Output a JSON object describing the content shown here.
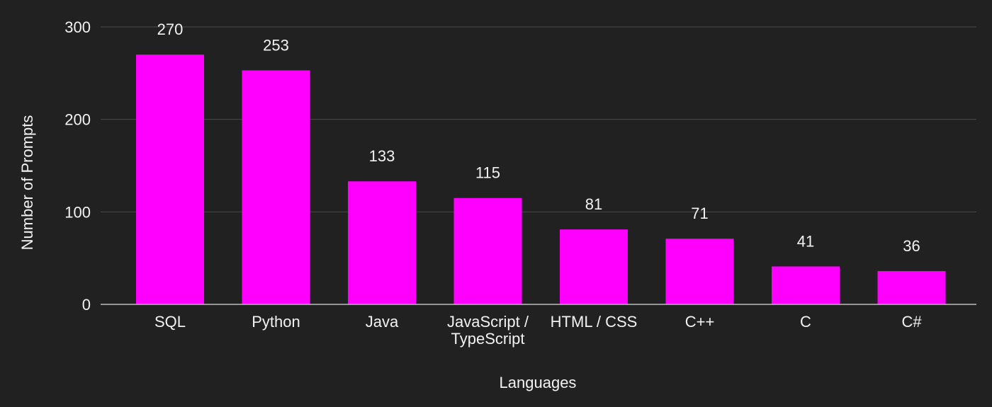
{
  "chart_data": {
    "type": "bar",
    "title": "",
    "xlabel": "Languages",
    "ylabel": "Number of Prompts",
    "categories": [
      [
        "SQL"
      ],
      [
        "Python"
      ],
      [
        "Java"
      ],
      [
        "JavaScript /",
        "TypeScript"
      ],
      [
        "HTML / CSS"
      ],
      [
        "C++"
      ],
      [
        "C"
      ],
      [
        "C#"
      ]
    ],
    "values": [
      270,
      253,
      133,
      115,
      81,
      71,
      41,
      36
    ],
    "ylim": [
      0,
      300
    ],
    "yticks": [
      0,
      100,
      200,
      300
    ],
    "grid": true,
    "show_data_labels": true
  },
  "colors": {
    "background": "#212121",
    "bar": "#ff00ff",
    "grid": "#4a4a4a",
    "axis": "#bdbdbd",
    "text": "#f2f2f2"
  }
}
